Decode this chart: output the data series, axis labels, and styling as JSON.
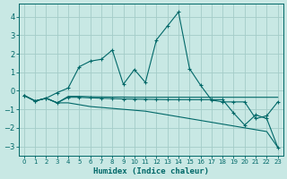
{
  "xlabel": "Humidex (Indice chaleur)",
  "background_color": "#c8e8e4",
  "grid_color": "#a4ccc8",
  "line_color": "#006868",
  "x_range": [
    -0.5,
    23.5
  ],
  "y_range": [
    -3.5,
    4.7
  ],
  "yticks": [
    -3,
    -2,
    -1,
    0,
    1,
    2,
    3,
    4
  ],
  "xticks": [
    0,
    1,
    2,
    3,
    4,
    5,
    6,
    7,
    8,
    9,
    10,
    11,
    12,
    13,
    14,
    15,
    16,
    17,
    18,
    19,
    20,
    21,
    22,
    23
  ],
  "s1_x": [
    0,
    1,
    2,
    3,
    4,
    5,
    6,
    7,
    8,
    9,
    10,
    11,
    12,
    13,
    14,
    15,
    16,
    17,
    18,
    19,
    20,
    21,
    22,
    23
  ],
  "s1_y": [
    -0.25,
    -0.55,
    -0.4,
    -0.65,
    -0.3,
    -0.3,
    -0.32,
    -0.33,
    -0.34,
    -0.34,
    -0.35,
    -0.35,
    -0.35,
    -0.35,
    -0.35,
    -0.35,
    -0.35,
    -0.35,
    -0.35,
    -0.35,
    -0.35,
    -0.35,
    -0.35,
    -0.35
  ],
  "s2_x": [
    0,
    1,
    2,
    3,
    4,
    5,
    6,
    7,
    8,
    9,
    10,
    11,
    12,
    13,
    14,
    15,
    16,
    17,
    18,
    19,
    20,
    21,
    22,
    23
  ],
  "s2_y": [
    -0.25,
    -0.55,
    -0.4,
    -0.65,
    -0.65,
    -0.75,
    -0.85,
    -0.9,
    -0.95,
    -1.0,
    -1.05,
    -1.1,
    -1.2,
    -1.3,
    -1.4,
    -1.5,
    -1.6,
    -1.7,
    -1.8,
    -1.9,
    -2.0,
    -2.1,
    -2.2,
    -3.05
  ],
  "s3_x": [
    0,
    1,
    2,
    3,
    4,
    5,
    6,
    7,
    8,
    9,
    10,
    11,
    12,
    13,
    14,
    15,
    16,
    17,
    18,
    19,
    20,
    21,
    22,
    23
  ],
  "s3_y": [
    -0.25,
    -0.55,
    -0.4,
    -0.65,
    -0.35,
    -0.35,
    -0.38,
    -0.4,
    -0.42,
    -0.44,
    -0.45,
    -0.46,
    -0.47,
    -0.48,
    -0.48,
    -0.48,
    -0.48,
    -0.48,
    -0.48,
    -1.2,
    -1.85,
    -1.3,
    -1.5,
    -3.05
  ],
  "s4_x": [
    0,
    1,
    2,
    3,
    4,
    5,
    6,
    7,
    8,
    9,
    10,
    11,
    12,
    13,
    14,
    15,
    16,
    17,
    18,
    19,
    20,
    21,
    22,
    23
  ],
  "s4_y": [
    -0.25,
    -0.55,
    -0.4,
    -0.1,
    0.15,
    1.3,
    1.6,
    1.7,
    2.2,
    0.35,
    1.15,
    0.45,
    2.75,
    3.5,
    4.25,
    1.2,
    0.3,
    -0.5,
    -0.6,
    -0.6,
    -0.6,
    -1.5,
    -1.35,
    -0.6
  ]
}
